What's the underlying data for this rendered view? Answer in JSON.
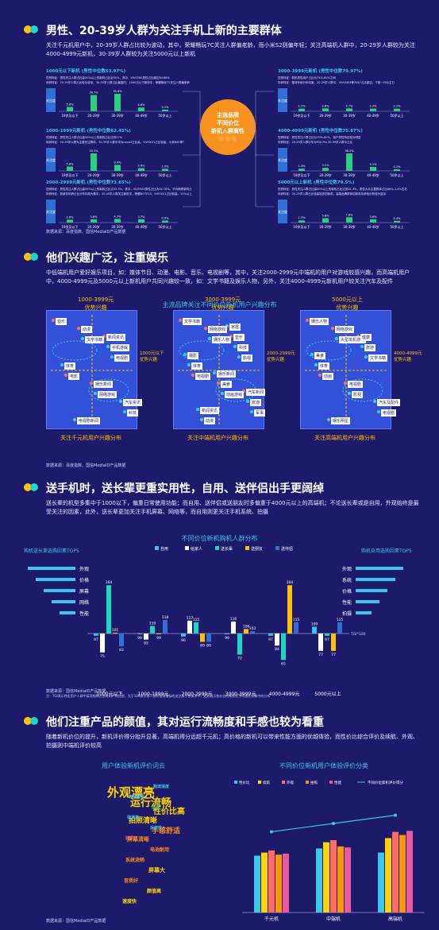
{
  "colors": {
    "bg": "#1d1a6b",
    "accent": "#3bc6f0",
    "yellow": "#ffc107",
    "orange": "#f7931e",
    "teal": "#1ed6c2",
    "green": "#2bd07e"
  },
  "s1": {
    "title": "男性、20-39岁人群为关注手机上新的主要群体",
    "desc": "关注千元机用户中，20-39岁人群占比较为波动，其中，荣耀畅玩7C关注人群偏老龄，而小米S2则偏年轻；关注高端机人群中，20-29岁人群较为关注4000-4999元新机，30-39岁人群较为关注5000元以上新机",
    "center": [
      "主流品牌",
      "不同价位",
      "新机人群属性"
    ],
    "source": "数据来源：百度指数、国信MediaID产品数据",
    "panels": [
      {
        "title": "1000元以下新机 (男性中位数53.97%)",
        "l1": "性别特征：男性关注人群占比高50%以上的新机占比近50%，其中，VIVOY85男性占比超过64.88%",
        "l2": "年龄特征：20-39岁人群占比较为波动，30-39岁人群占比最高时，1000元以下新机中，荣耀畅玩7C关注人群偏老龄",
        "vals": [
          "5.8%",
          "30.7%",
          "35.6%",
          "4.6%",
          "0.1%"
        ]
      },
      {
        "title": "1000-1999元新机 (男性中位数62.45%)",
        "l1": "性别特征：男性关注人群占比高50%以上的新机占比达到57%",
        "l2": "年龄特征：20-39岁人群为主要关注群体，30-39岁人群中华为nova3占比高，VIVOX21占比较高，小米8SE等TOP1",
        "vals": [
          "5.8%",
          "33.3%",
          "9.4%",
          "2.4%",
          "1.0%"
        ]
      },
      {
        "title": "2000-2999元新机 (男性中位数73.65%)",
        "l1": "性别特征：男性关注人群占比高50%以上的新机占比达55.3%，其中，VIVOY85男性占比为35.78%，华为畅享新机占比达TOP1",
        "l2": "年龄特征：各新机年龄占比分布均较为集中，40-49岁人群关注新机中，荣耀NOTE10、VIVOX21占比较高，10%以上",
        "vals": [
          "2.6%",
          "3.6%",
          "4.3%",
          "3.7%",
          "0.9%"
        ]
      },
      {
        "title": "3000-3999元新机 (男性中位数79.97%)",
        "l1": "性别特征：新机男性用户占比为75%-80%之间",
        "l2": "年龄特征：整体年龄分布均衡，20-29岁人群中，VIVONEX等2067占比超过，千禧一代为主力",
        "vals": [
          "2.2%",
          "2.8%",
          "2.7%",
          "2.2%",
          "2.2%"
        ]
      },
      {
        "title": "4000-4999元新机 (男性中位数75.87%)",
        "l1": "性别特征：男性关注人群占比为70%-80%，用户男性特征较为明显",
        "l2": "年龄特征：20-29岁人群中华为P20 Pro 30-39岁人群中占比",
        "vals": [
          "1.3%",
          "3.1%",
          "36.2%",
          "5.1%",
          "0.2%"
        ]
      },
      {
        "title": "5000元以上新机 (男性中位数79.5%)",
        "l1": "性别特征：男性关注人群占比高50%以上的新机占比达到41.3%，男性大众主要群体占比86%-1.4%左右",
        "l2": "年龄特征：20-29岁人群占比较高较多的新机，高端品牌群体的新机年龄段分布较为复杂",
        "vals": [
          "1.3%",
          "5.8%",
          "7.8%",
          "3.6%",
          "0.4%"
        ]
      }
    ],
    "xcats": [
      "19岁及以下",
      "20-29岁",
      "30-39岁",
      "40-49岁",
      "50岁以上"
    ],
    "ylabel": "关注度"
  },
  "s2": {
    "title": "他们兴趣广泛，注重娱乐",
    "desc": "中低端机用户爱好娱乐项目，如：媒体节目、动漫、电影、音乐、电视剧等，其中，关注2000-2999元中端机的用户对游戏较感兴趣，而高端机用户中，4000-4999元及5000元以上新机用户共同兴趣较一致，如：文学书籍及娱乐人物，另外，关注4000-4999元新机用户较关注汽车及配件",
    "chart_title": "主流品牌关注不同价位新机用户兴趣分布",
    "source": "数据来源：百度指数、国信MediaID产品数据",
    "maps": [
      {
        "caption": "关注千元机用户兴趣分布",
        "ytop": "1000-3999元\n优势兴趣",
        "xright": "1000元以下\n优势兴趣",
        "tags": [
          "音乐",
          "文学书籍",
          "电视剧",
          "电影",
          "网络游戏",
          "科技",
          "动漫",
          "手机游戏",
          "体育",
          "娱乐新闻",
          "汽车资讯",
          "电视剧新闻",
          "新闻资讯"
        ]
      },
      {
        "caption": "关注中端机用户兴趣分布",
        "ytop": "3000-3999元\n优势兴趣",
        "xright": "2000-2999元\n优势兴趣",
        "tags": [
          "文学书籍",
          "娱乐人物",
          "影视",
          "电视剧",
          "动画游戏",
          "军事",
          "网络游戏",
          "科技",
          "体育",
          "美食",
          "旅游",
          "动漫",
          "音乐",
          "摄影",
          "娱乐新闻",
          "汽车新闻",
          "新闻资讯",
          "家居"
        ]
      },
      {
        "caption": "关注高端机用户兴趣分布",
        "ytop": "5000元以上\n优势兴趣",
        "xright": "4000-4999元\n优势兴趣",
        "tags": [
          "娱乐人物",
          "大型单机游戏",
          "文学书籍",
          "动画",
          "影视",
          "电视剧",
          "网络游戏",
          "旅游",
          "体育",
          "电视剧",
          "汽车及配件",
          "娱乐明星",
          "健康",
          "美食"
        ]
      }
    ]
  },
  "s3": {
    "title": "送手机时，送长辈更重实用性，自用、送伴侣出手更阔绰",
    "desc": "送长辈的机型多集中于1000以下，偏重日常使用功能；而自用、送伴侣或送朋友时多偏重于4000元以上的高端机；不论送长辈或是自用，外观始终是最受关注的因素，此外，送长辈更加关注手机屏幕、网络等，而自用则更关注手机系统、拍摄",
    "left_title": "购机送长辈选购因素TOP5",
    "right_title": "购机自用选购因素TOP5",
    "left_items": [
      "外观",
      "价格",
      "屏幕",
      "网络",
      "性能"
    ],
    "right_items": [
      "外观",
      "系统",
      "价格",
      "性能",
      "拍摄"
    ],
    "note": "TGI*100",
    "source": "数据来源：国信MediaID产品数据",
    "source2": "注：TGI表示特定用户人群中某项指标占所有用户的比例，大于100表示该人群对该项指标的关注高于整体水平，此处表示各价位的新机在不同送礼对象中的分布",
    "right_nums": [
      "",
      "",
      "",
      "",
      ""
    ]
  },
  "s4": {
    "title": "他们注重产品的颜值，其对运行流畅度和手感也较为看重",
    "desc": "随着新机价位的提升，新机评价得分抬升显著，高端机得分远超千元机；高价格的新机可以带来性能方面的优越体验，而性价比综合评价及续航、外观、拍摄则中端机评价较高",
    "left_title": "用户体验新机评价词云",
    "right_title": "不同价位新机用户体验评价分类",
    "source": "数据来源：国信MediaID产品数据",
    "words": [
      {
        "t": "外观漂亮",
        "c": "#ffd400",
        "s": 15
      },
      {
        "t": "运行流畅",
        "c": "#ffd400",
        "s": 13
      },
      {
        "t": "性价比高",
        "c": "#ffd400",
        "s": 10
      },
      {
        "t": "拍照清晰",
        "c": "#ffd400",
        "s": 9
      },
      {
        "t": "手感舒适",
        "c": "#ff8c1a",
        "s": 9
      },
      {
        "t": "屏幕清晰",
        "c": "#ff8c1a",
        "s": 7
      },
      {
        "t": "电池耐用",
        "c": "#ff8c1a",
        "s": 6
      },
      {
        "t": "系统流畅",
        "c": "#ff8c1a",
        "s": 6
      },
      {
        "t": "屏幕大",
        "c": "#ffd400",
        "s": 7
      },
      {
        "t": "音质好",
        "c": "#ff8c1a",
        "s": 6
      },
      {
        "t": "颜值高",
        "c": "#ffd400",
        "s": 6
      },
      {
        "t": "速度快",
        "c": "#ffd400",
        "s": 6
      },
      {
        "t": "物流速度",
        "c": "#3bc6f0",
        "s": 5
      },
      {
        "t": "包装精美",
        "c": "#3bc6f0",
        "s": 5
      },
      {
        "t": "正品",
        "c": "#2bd07e",
        "s": 5
      },
      {
        "t": "很满意",
        "c": "#3bc6f0",
        "s": 5
      },
      {
        "t": "反应快",
        "c": "#3bc6f0",
        "s": 5
      },
      {
        "t": "好评",
        "c": "#ff6b6b",
        "s": 5
      }
    ]
  },
  "chart_data": [
    {
      "type": "bar",
      "title": "不同价位新机购机人群分布",
      "categories": [
        "1000元以下",
        "1000-1999元",
        "2000-2999元",
        "3000-3999元",
        "4000-4999元",
        "5000元以上"
      ],
      "series": [
        {
          "name": "自用",
          "color": "#3bc6f0",
          "values": [
            97,
            99,
            96,
            99,
            97,
            109
          ]
        },
        {
          "name": "给家人",
          "color": "#ffffff",
          "values": [
            75,
            92,
            117,
            116,
            84,
            77
          ]
        },
        {
          "name": "送长辈",
          "color": "#1ed6c2",
          "values": [
            164,
            110,
            115,
            72,
            65,
            97
          ]
        },
        {
          "name": "送朋友",
          "color": "#ffc107",
          "values": [
            101,
            99,
            89,
            106,
            164,
            77
          ]
        },
        {
          "name": "送伴侣",
          "color": "#2f6fd6",
          "values": [
            83,
            118,
            89,
            103,
            115,
            115
          ]
        }
      ],
      "baseline": 100,
      "note": "TGI*100"
    },
    {
      "type": "bar",
      "title": "不同价位新机用户体验评价分类",
      "categories": [
        "千元机",
        "中端机",
        "高端机"
      ],
      "series": [
        {
          "name": "性价比",
          "color": "#3bc6f0",
          "values": [
            55,
            62,
            58
          ]
        },
        {
          "name": "续航",
          "color": "#ffd400",
          "values": [
            58,
            68,
            72
          ]
        },
        {
          "name": "外观",
          "color": "#ff6b6b",
          "values": [
            60,
            70,
            78
          ]
        },
        {
          "name": "拍照",
          "color": "#ff9800",
          "values": [
            56,
            64,
            75
          ]
        },
        {
          "name": "性能",
          "color": "#e85aa0",
          "values": [
            57,
            63,
            79
          ]
        }
      ],
      "line": {
        "name": "不同价位新机评价得分",
        "color": "#3bc6f0",
        "values": [
          72,
          80,
          88
        ]
      }
    }
  ]
}
